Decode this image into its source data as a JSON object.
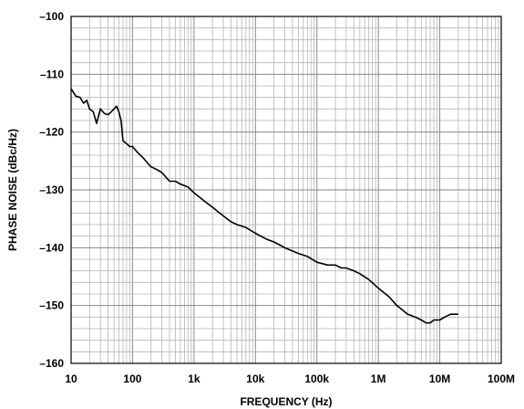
{
  "chart_data": {
    "type": "line",
    "title": "",
    "xlabel": "FREQUENCY (Hz)",
    "ylabel": "PHASE NOISE (dBc/Hz)",
    "xscale": "log",
    "xlim": [
      10,
      100000000
    ],
    "ylim": [
      -160,
      -100
    ],
    "grid": true,
    "x_tick_values": [
      10,
      100,
      1000,
      10000,
      100000,
      1000000,
      10000000,
      100000000
    ],
    "x_tick_labels": [
      "10",
      "100",
      "1k",
      "10k",
      "100k",
      "1M",
      "10M",
      "100M"
    ],
    "y_tick_values": [
      -160,
      -150,
      -140,
      -130,
      -120,
      -110,
      -100
    ],
    "y_tick_labels": [
      "–160",
      "–150",
      "–140",
      "–130",
      "–120",
      "–110",
      "–100"
    ],
    "series": [
      {
        "color": "#000000",
        "x": [
          10,
          12,
          14,
          16,
          18,
          20,
          23,
          26,
          30,
          35,
          40,
          45,
          50,
          55,
          60,
          65,
          70,
          80,
          90,
          100,
          120,
          150,
          180,
          200,
          250,
          300,
          400,
          500,
          600,
          800,
          1000,
          1500,
          2000,
          3000,
          4000,
          5000,
          7000,
          10000,
          15000,
          20000,
          30000,
          50000,
          70000,
          100000,
          150000,
          200000,
          250000,
          300000,
          400000,
          500000,
          700000,
          1000000,
          1500000,
          2000000,
          3000000,
          4000000,
          5000000,
          6000000,
          7000000,
          8000000,
          10000000,
          12000000,
          15000000,
          20000000
        ],
        "y": [
          -112.5,
          -113.8,
          -114,
          -115,
          -114.5,
          -116,
          -116.5,
          -118.5,
          -116,
          -116.8,
          -117,
          -116.5,
          -116,
          -115.5,
          -116.5,
          -118,
          -121.5,
          -122,
          -122.5,
          -122.5,
          -123.5,
          -124.5,
          -125.5,
          -126,
          -126.5,
          -127,
          -128.5,
          -128.5,
          -129,
          -129.5,
          -130.5,
          -132,
          -133,
          -134.5,
          -135.5,
          -136,
          -136.5,
          -137.5,
          -138.5,
          -139,
          -140,
          -141,
          -141.5,
          -142.5,
          -143,
          -143,
          -143.5,
          -143.5,
          -144,
          -144.5,
          -145.5,
          -147,
          -148.5,
          -150,
          -151.5,
          -152,
          -152.5,
          -153,
          -153,
          -152.5,
          -152.5,
          -152,
          -151.5,
          -151.5
        ]
      }
    ]
  }
}
